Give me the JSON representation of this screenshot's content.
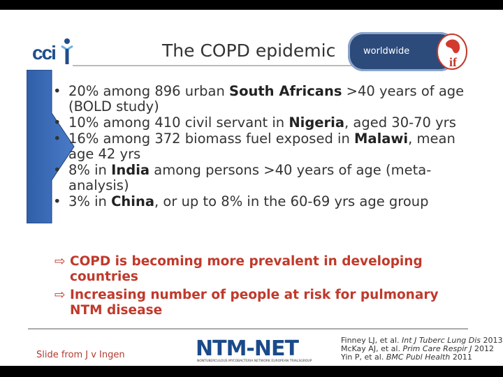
{
  "slide": {
    "title": "The COPD epidemic",
    "badge": "worldwide",
    "logo_left": "cci",
    "logo_right": "if",
    "bullets": [
      {
        "pre": "20% among 896 urban ",
        "bold": "South Africans",
        "post": " >40 years of age (BOLD study)"
      },
      {
        "pre": "10% among 410 civil servant in ",
        "bold": "Nigeria",
        "post": ", aged 30-70 yrs"
      },
      {
        "pre": "16% among 372 biomass fuel exposed in ",
        "bold": "Malawi",
        "post": ", mean age 42 yrs"
      },
      {
        "pre": "8% in ",
        "bold": "India",
        "post": " among persons >40 years of age (meta-analysis)"
      },
      {
        "pre": "3% in ",
        "bold": "China",
        "post": ", or up to 8% in the 60-69 yrs age group"
      }
    ],
    "conclusions": [
      "COPD is becoming more prevalent in developing countries",
      "Increasing number of people at risk for pulmonary NTM disease"
    ],
    "footer": {
      "source": "Slide from J v Ingen",
      "logo_text": "NTM-NET",
      "logo_tagline": "NONTUBERCULOUS MYCOBACTERIA NETWORK EUROPEAN TRIALSGROUP",
      "refs": [
        {
          "authors": "Finney LJ, et al.",
          "journal": "Int J Tuberc Lung Dis",
          "year": "2013"
        },
        {
          "authors": "McKay AJ, et al.",
          "journal": "Prim Care Respir J",
          "year": "2012"
        },
        {
          "authors": "Yin P, et al.",
          "journal": "BMC Publ Health",
          "year": "2011"
        }
      ]
    },
    "colors": {
      "accent_red": "#c0392b",
      "brand_blue": "#1f4e8c",
      "badge_bg": "#2c4a7a"
    }
  }
}
